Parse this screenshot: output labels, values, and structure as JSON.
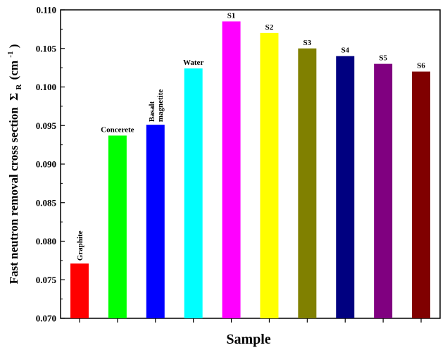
{
  "chart_data": {
    "type": "bar",
    "title": "",
    "xlabel": "Sample",
    "ylabel": {
      "prefix": "Fast neutron removal cross section",
      "symbol": "Σ",
      "subscript": "R",
      "unit_open": "(cm",
      "unit_sup": "-1",
      "unit_close": ")"
    },
    "ylim": [
      0.07,
      0.11
    ],
    "yticks": [
      "0.070",
      "0.075",
      "0.080",
      "0.085",
      "0.090",
      "0.095",
      "0.100",
      "0.105",
      "0.110"
    ],
    "categories": [
      {
        "label": [
          "Graphite"
        ],
        "vertical": true
      },
      {
        "label": [
          "Concerete"
        ],
        "vertical": false
      },
      {
        "label": [
          "Basalt",
          "magnetite"
        ],
        "vertical": true
      },
      {
        "label": [
          "Water"
        ],
        "vertical": false
      },
      {
        "label": [
          "S1"
        ],
        "vertical": false
      },
      {
        "label": [
          "S2"
        ],
        "vertical": false
      },
      {
        "label": [
          "S3"
        ],
        "vertical": false
      },
      {
        "label": [
          "S4"
        ],
        "vertical": false
      },
      {
        "label": [
          "S5"
        ],
        "vertical": false
      },
      {
        "label": [
          "S6"
        ],
        "vertical": false
      }
    ],
    "values": [
      0.0771,
      0.0937,
      0.0951,
      0.1024,
      0.1085,
      0.107,
      0.105,
      0.104,
      0.103,
      0.102
    ],
    "colors": [
      "#ff0000",
      "#00ff00",
      "#0000ff",
      "#00ffff",
      "#ff00ff",
      "#ffff00",
      "#808000",
      "#000080",
      "#800080",
      "#800000"
    ],
    "grid": false,
    "legend": "none"
  }
}
